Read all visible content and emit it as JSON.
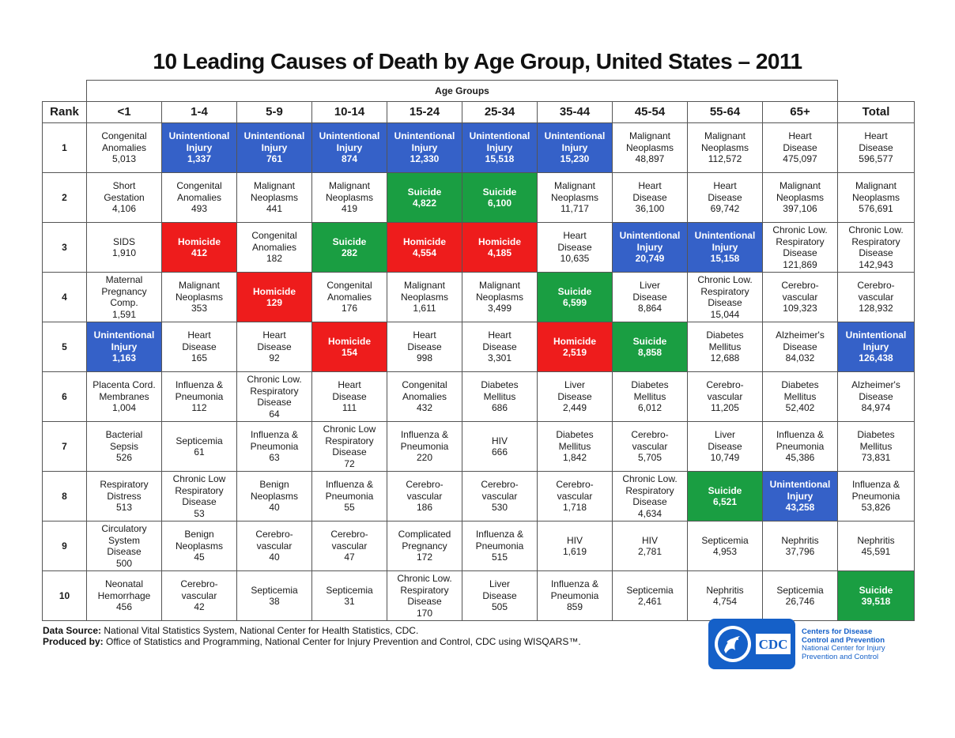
{
  "title": "10 Leading Causes of Death by Age Group, United States – 2011",
  "age_groups_label": "Age Groups",
  "headers": [
    "Rank",
    "<1",
    "1-4",
    "5-9",
    "10-14",
    "15-24",
    "25-34",
    "35-44",
    "45-54",
    "55-64",
    "65+",
    "Total"
  ],
  "colors": {
    "blue": "#3561c8",
    "red": "#ee1c1c",
    "green": "#1a9e42"
  },
  "rows": [
    {
      "rank": "1",
      "cells": [
        {
          "cause": "Congenital\nAnomalies",
          "value": "5,013",
          "color": ""
        },
        {
          "cause": "Unintentional\nInjury",
          "value": "1,337",
          "color": "blue"
        },
        {
          "cause": "Unintentional\nInjury",
          "value": "761",
          "color": "blue"
        },
        {
          "cause": "Unintentional\nInjury",
          "value": "874",
          "color": "blue"
        },
        {
          "cause": "Unintentional\nInjury",
          "value": "12,330",
          "color": "blue"
        },
        {
          "cause": "Unintentional\nInjury",
          "value": "15,518",
          "color": "blue"
        },
        {
          "cause": "Unintentional\nInjury",
          "value": "15,230",
          "color": "blue"
        },
        {
          "cause": "Malignant\nNeoplasms",
          "value": "48,897",
          "color": ""
        },
        {
          "cause": "Malignant\nNeoplasms",
          "value": "112,572",
          "color": ""
        },
        {
          "cause": "Heart\nDisease",
          "value": "475,097",
          "color": ""
        },
        {
          "cause": "Heart\nDisease",
          "value": "596,577",
          "color": ""
        }
      ]
    },
    {
      "rank": "2",
      "cells": [
        {
          "cause": "Short\nGestation",
          "value": "4,106",
          "color": ""
        },
        {
          "cause": "Congenital\nAnomalies",
          "value": "493",
          "color": ""
        },
        {
          "cause": "Malignant\nNeoplasms",
          "value": "441",
          "color": ""
        },
        {
          "cause": "Malignant\nNeoplasms",
          "value": "419",
          "color": ""
        },
        {
          "cause": "Suicide",
          "value": "4,822",
          "color": "green"
        },
        {
          "cause": "Suicide",
          "value": "6,100",
          "color": "green"
        },
        {
          "cause": "Malignant\nNeoplasms",
          "value": "11,717",
          "color": ""
        },
        {
          "cause": "Heart\nDisease",
          "value": "36,100",
          "color": ""
        },
        {
          "cause": "Heart\nDisease",
          "value": "69,742",
          "color": ""
        },
        {
          "cause": "Malignant\nNeoplasms",
          "value": "397,106",
          "color": ""
        },
        {
          "cause": "Malignant\nNeoplasms",
          "value": "576,691",
          "color": ""
        }
      ]
    },
    {
      "rank": "3",
      "cells": [
        {
          "cause": "SIDS",
          "value": "1,910",
          "color": ""
        },
        {
          "cause": "Homicide",
          "value": "412",
          "color": "red"
        },
        {
          "cause": "Congenital\nAnomalies",
          "value": "182",
          "color": ""
        },
        {
          "cause": "Suicide",
          "value": "282",
          "color": "green"
        },
        {
          "cause": "Homicide",
          "value": "4,554",
          "color": "red"
        },
        {
          "cause": "Homicide",
          "value": "4,185",
          "color": "red"
        },
        {
          "cause": "Heart\nDisease",
          "value": "10,635",
          "color": ""
        },
        {
          "cause": "Unintentional\nInjury",
          "value": "20,749",
          "color": "blue"
        },
        {
          "cause": "Unintentional\nInjury",
          "value": "15,158",
          "color": "blue"
        },
        {
          "cause": "Chronic Low.\nRespiratory\nDisease",
          "value": "121,869",
          "color": ""
        },
        {
          "cause": "Chronic Low.\nRespiratory\nDisease",
          "value": "142,943",
          "color": ""
        }
      ]
    },
    {
      "rank": "4",
      "cells": [
        {
          "cause": "Maternal\nPregnancy\nComp.",
          "value": "1,591",
          "color": ""
        },
        {
          "cause": "Malignant\nNeoplasms",
          "value": "353",
          "color": ""
        },
        {
          "cause": "Homicide",
          "value": "129",
          "color": "red"
        },
        {
          "cause": "Congenital\nAnomalies",
          "value": "176",
          "color": ""
        },
        {
          "cause": "Malignant\nNeoplasms",
          "value": "1,611",
          "color": ""
        },
        {
          "cause": "Malignant\nNeoplasms",
          "value": "3,499",
          "color": ""
        },
        {
          "cause": "Suicide",
          "value": "6,599",
          "color": "green"
        },
        {
          "cause": "Liver\nDisease",
          "value": "8,864",
          "color": ""
        },
        {
          "cause": "Chronic Low.\nRespiratory\nDisease",
          "value": "15,044",
          "color": ""
        },
        {
          "cause": "Cerebro-\nvascular",
          "value": "109,323",
          "color": ""
        },
        {
          "cause": "Cerebro-\nvascular",
          "value": "128,932",
          "color": ""
        }
      ]
    },
    {
      "rank": "5",
      "cells": [
        {
          "cause": "Unintentional\nInjury",
          "value": "1,163",
          "color": "blue"
        },
        {
          "cause": "Heart\nDisease",
          "value": "165",
          "color": ""
        },
        {
          "cause": "Heart\nDisease",
          "value": "92",
          "color": ""
        },
        {
          "cause": "Homicide",
          "value": "154",
          "color": "red"
        },
        {
          "cause": "Heart\nDisease",
          "value": "998",
          "color": ""
        },
        {
          "cause": "Heart\nDisease",
          "value": "3,301",
          "color": ""
        },
        {
          "cause": "Homicide",
          "value": "2,519",
          "color": "red"
        },
        {
          "cause": "Suicide",
          "value": "8,858",
          "color": "green"
        },
        {
          "cause": "Diabetes\nMellitus",
          "value": "12,688",
          "color": ""
        },
        {
          "cause": "Alzheimer's\nDisease",
          "value": "84,032",
          "color": ""
        },
        {
          "cause": "Unintentional\nInjury",
          "value": "126,438",
          "color": "blue"
        }
      ]
    },
    {
      "rank": "6",
      "cells": [
        {
          "cause": "Placenta Cord.\nMembranes",
          "value": "1,004",
          "color": ""
        },
        {
          "cause": "Influenza &\nPneumonia",
          "value": "112",
          "color": ""
        },
        {
          "cause": "Chronic Low.\nRespiratory\nDisease",
          "value": "64",
          "color": ""
        },
        {
          "cause": "Heart\nDisease",
          "value": "111",
          "color": ""
        },
        {
          "cause": "Congenital\nAnomalies",
          "value": "432",
          "color": ""
        },
        {
          "cause": "Diabetes\nMellitus",
          "value": "686",
          "color": ""
        },
        {
          "cause": "Liver\nDisease",
          "value": "2,449",
          "color": ""
        },
        {
          "cause": "Diabetes\nMellitus",
          "value": "6,012",
          "color": ""
        },
        {
          "cause": "Cerebro-\nvascular",
          "value": "11,205",
          "color": ""
        },
        {
          "cause": "Diabetes\nMellitus",
          "value": "52,402",
          "color": ""
        },
        {
          "cause": "Alzheimer's\nDisease",
          "value": "84,974",
          "color": ""
        }
      ]
    },
    {
      "rank": "7",
      "cells": [
        {
          "cause": "Bacterial\nSepsis",
          "value": "526",
          "color": ""
        },
        {
          "cause": "Septicemia",
          "value": "61",
          "color": ""
        },
        {
          "cause": "Influenza &\nPneumonia",
          "value": "63",
          "color": ""
        },
        {
          "cause": "Chronic Low\nRespiratory\nDisease",
          "value": "72",
          "color": ""
        },
        {
          "cause": "Influenza &\nPneumonia",
          "value": "220",
          "color": ""
        },
        {
          "cause": "HIV",
          "value": "666",
          "color": ""
        },
        {
          "cause": "Diabetes\nMellitus",
          "value": "1,842",
          "color": ""
        },
        {
          "cause": "Cerebro-\nvascular",
          "value": "5,705",
          "color": ""
        },
        {
          "cause": "Liver\nDisease",
          "value": "10,749",
          "color": ""
        },
        {
          "cause": "Influenza &\nPneumonia",
          "value": "45,386",
          "color": ""
        },
        {
          "cause": "Diabetes\nMellitus",
          "value": "73,831",
          "color": ""
        }
      ]
    },
    {
      "rank": "8",
      "cells": [
        {
          "cause": "Respiratory\nDistress",
          "value": "513",
          "color": ""
        },
        {
          "cause": "Chronic Low\nRespiratory\nDisease",
          "value": "53",
          "color": ""
        },
        {
          "cause": "Benign\nNeoplasms",
          "value": "40",
          "color": ""
        },
        {
          "cause": "Influenza &\nPneumonia",
          "value": "55",
          "color": ""
        },
        {
          "cause": "Cerebro-\nvascular",
          "value": "186",
          "color": ""
        },
        {
          "cause": "Cerebro-\nvascular",
          "value": "530",
          "color": ""
        },
        {
          "cause": "Cerebro-\nvascular",
          "value": "1,718",
          "color": ""
        },
        {
          "cause": "Chronic Low.\nRespiratory\nDisease",
          "value": "4,634",
          "color": ""
        },
        {
          "cause": "Suicide",
          "value": "6,521",
          "color": "green"
        },
        {
          "cause": "Unintentional\nInjury",
          "value": "43,258",
          "color": "blue"
        },
        {
          "cause": "Influenza &\nPneumonia",
          "value": "53,826",
          "color": ""
        }
      ]
    },
    {
      "rank": "9",
      "cells": [
        {
          "cause": "Circulatory\nSystem\nDisease",
          "value": "500",
          "color": ""
        },
        {
          "cause": "Benign\nNeoplasms",
          "value": "45",
          "color": ""
        },
        {
          "cause": "Cerebro-\nvascular",
          "value": "40",
          "color": ""
        },
        {
          "cause": "Cerebro-\nvascular",
          "value": "47",
          "color": ""
        },
        {
          "cause": "Complicated\nPregnancy",
          "value": "172",
          "color": ""
        },
        {
          "cause": "Influenza &\nPneumonia",
          "value": "515",
          "color": ""
        },
        {
          "cause": "HIV",
          "value": "1,619",
          "color": ""
        },
        {
          "cause": "HIV",
          "value": "2,781",
          "color": ""
        },
        {
          "cause": "Septicemia",
          "value": "4,953",
          "color": ""
        },
        {
          "cause": "Nephritis",
          "value": "37,796",
          "color": ""
        },
        {
          "cause": "Nephritis",
          "value": "45,591",
          "color": ""
        }
      ]
    },
    {
      "rank": "10",
      "cells": [
        {
          "cause": "Neonatal\nHemorrhage",
          "value": "456",
          "color": ""
        },
        {
          "cause": "Cerebro-\nvascular",
          "value": "42",
          "color": ""
        },
        {
          "cause": "Septicemia",
          "value": "38",
          "color": ""
        },
        {
          "cause": "Septicemia",
          "value": "31",
          "color": ""
        },
        {
          "cause": "Chronic Low.\nRespiratory\nDisease",
          "value": "170",
          "color": ""
        },
        {
          "cause": "Liver\nDisease",
          "value": "505",
          "color": ""
        },
        {
          "cause": "Influenza &\nPneumonia",
          "value": "859",
          "color": ""
        },
        {
          "cause": "Septicemia",
          "value": "2,461",
          "color": ""
        },
        {
          "cause": "Nephritis",
          "value": "4,754",
          "color": ""
        },
        {
          "cause": "Septicemia",
          "value": "26,746",
          "color": ""
        },
        {
          "cause": "Suicide",
          "value": "39,518",
          "color": "green"
        }
      ]
    }
  ],
  "footer": {
    "source_label": "Data Source:",
    "source_text": " National Vital Statistics System, National Center for Health Statistics, CDC.",
    "produced_label": "Produced by:",
    "produced_text": " Office of Statistics and Programming, National Center for Injury Prevention and Control, CDC using WISQARS™."
  },
  "logo": {
    "mark_text": "CDC",
    "line1": "Centers for Disease",
    "line2": "Control and Prevention",
    "line3": "National Center for Injury",
    "line4": "Prevention and Control",
    "color": "#1560c8"
  }
}
